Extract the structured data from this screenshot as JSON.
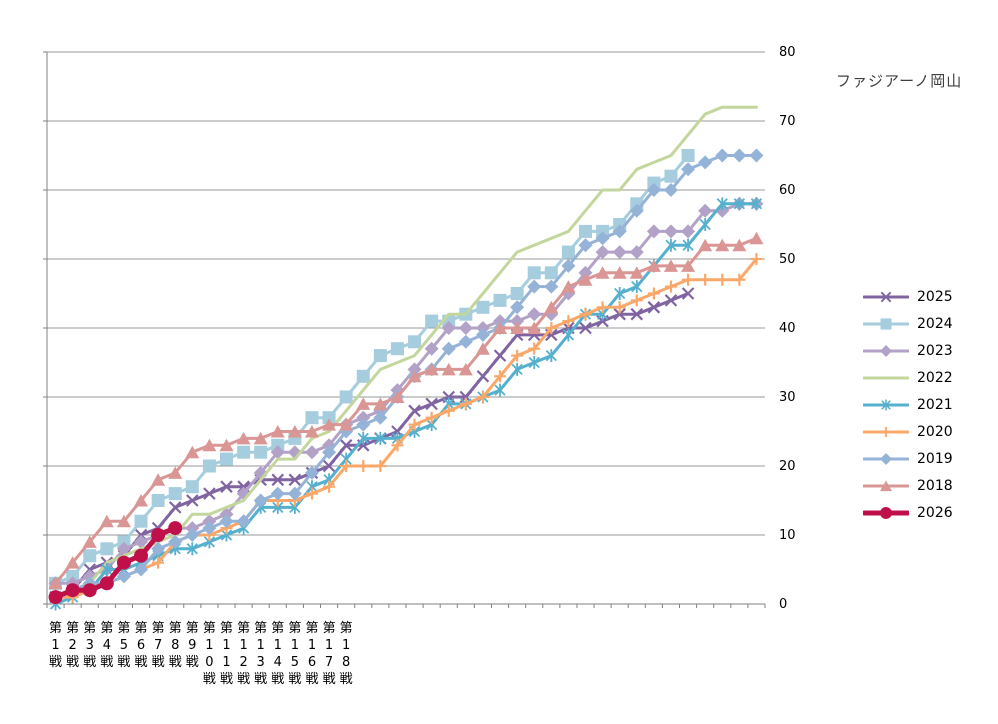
{
  "title": "ファジアーノ岡山",
  "y_axis": {
    "labels": [
      "0",
      "10",
      "20",
      "30",
      "40",
      "50",
      "60",
      "70",
      "80"
    ],
    "min": 0,
    "max": 80,
    "step": 10
  },
  "x_axis": {
    "labels": [
      "第1戦",
      "第2戦",
      "第3戦",
      "第4戦",
      "第5戦",
      "第6戦",
      "第7戦",
      "第8戦",
      "第9戦",
      "第10戦",
      "第11戦",
      "第12戦",
      "第13戦",
      "第14戦",
      "第15戦",
      "第16戦",
      "第17戦",
      "第18戦"
    ],
    "total_categories": 42
  },
  "chart_data": {
    "type": "line",
    "title": "ファジアーノ岡山",
    "xlabel": "",
    "ylabel": "",
    "ylim": [
      0,
      80
    ],
    "grid": true,
    "legend_position": "right",
    "x_tick_labels_shown": 18,
    "x_total_categories": 42,
    "series": [
      {
        "name": "2025",
        "color": "#8064A2",
        "marker": "x",
        "line_width": 3,
        "values": [
          1,
          2,
          5,
          6,
          7,
          10,
          11,
          14,
          15,
          16,
          17,
          17,
          18,
          18,
          18,
          19,
          20,
          23,
          23,
          24,
          25,
          28,
          29,
          30,
          30,
          33,
          36,
          39,
          39,
          39,
          40,
          40,
          41,
          42,
          42,
          43,
          44,
          45
        ]
      },
      {
        "name": "2024",
        "color": "#A6CDDE",
        "marker": "square",
        "line_width": 3,
        "values": [
          3,
          4,
          7,
          8,
          9,
          12,
          15,
          16,
          17,
          20,
          21,
          22,
          22,
          23,
          24,
          27,
          27,
          30,
          33,
          36,
          37,
          38,
          41,
          41,
          42,
          43,
          44,
          45,
          48,
          48,
          51,
          54,
          54,
          55,
          58,
          61,
          62,
          65
        ]
      },
      {
        "name": "2023",
        "color": "#B3A2C7",
        "marker": "diamond",
        "line_width": 3,
        "values": [
          3,
          3,
          4,
          5,
          8,
          9,
          10,
          11,
          11,
          12,
          13,
          16,
          19,
          22,
          22,
          22,
          23,
          26,
          27,
          28,
          31,
          34,
          37,
          40,
          40,
          40,
          41,
          41,
          42,
          42,
          45,
          48,
          51,
          51,
          51,
          54,
          54,
          54,
          57,
          57,
          58,
          58
        ]
      },
      {
        "name": "2022",
        "color": "#C3D69B",
        "marker": "none",
        "line_width": 3,
        "values": [
          1,
          2,
          3,
          6,
          7,
          8,
          9,
          10,
          13,
          13,
          14,
          15,
          18,
          21,
          21,
          24,
          25,
          28,
          31,
          34,
          35,
          36,
          39,
          42,
          42,
          45,
          48,
          51,
          52,
          53,
          54,
          57,
          60,
          60,
          63,
          64,
          65,
          68,
          71,
          72,
          72,
          72
        ]
      },
      {
        "name": "2021",
        "color": "#55B0CE",
        "marker": "asterisk",
        "line_width": 3,
        "values": [
          0,
          1,
          2,
          5,
          5,
          6,
          7,
          8,
          8,
          9,
          10,
          11,
          14,
          14,
          14,
          17,
          18,
          21,
          24,
          24,
          24,
          25,
          26,
          29,
          29,
          30,
          31,
          34,
          35,
          36,
          39,
          42,
          42,
          45,
          46,
          49,
          52,
          52,
          55,
          58,
          58,
          58
        ]
      },
      {
        "name": "2020",
        "color": "#FAA869",
        "marker": "plus",
        "line_width": 3,
        "values": [
          1,
          1,
          2,
          3,
          4,
          5,
          6,
          9,
          10,
          10,
          11,
          12,
          15,
          15,
          15,
          16,
          17,
          20,
          20,
          20,
          23,
          26,
          27,
          28,
          29,
          30,
          33,
          36,
          37,
          40,
          41,
          42,
          43,
          43,
          44,
          45,
          46,
          47,
          47,
          47,
          47,
          50
        ]
      },
      {
        "name": "2019",
        "color": "#95B3D7",
        "marker": "diamond",
        "line_width": 3,
        "values": [
          1,
          2,
          3,
          3,
          4,
          5,
          8,
          9,
          10,
          11,
          12,
          12,
          15,
          16,
          16,
          19,
          22,
          25,
          26,
          27,
          30,
          33,
          34,
          37,
          38,
          39,
          40,
          43,
          46,
          46,
          49,
          52,
          53,
          54,
          57,
          60,
          60,
          63,
          64,
          65,
          65,
          65
        ]
      },
      {
        "name": "2018",
        "color": "#D99694",
        "marker": "triangle",
        "line_width": 3,
        "values": [
          3,
          6,
          9,
          12,
          12,
          15,
          18,
          19,
          22,
          23,
          23,
          24,
          24,
          25,
          25,
          25,
          26,
          26,
          29,
          29,
          30,
          33,
          34,
          34,
          34,
          37,
          40,
          40,
          40,
          43,
          46,
          47,
          48,
          48,
          48,
          49,
          49,
          49,
          52,
          52,
          52,
          53
        ]
      },
      {
        "name": "2026",
        "color": "#C01049",
        "marker": "circle",
        "line_width": 5,
        "values": [
          1,
          2,
          2,
          3,
          6,
          7,
          10,
          11
        ]
      }
    ]
  },
  "colors": {
    "gridline": "#999999",
    "axis": "#808080",
    "text": "#000000",
    "title": "#3f3f3f"
  }
}
